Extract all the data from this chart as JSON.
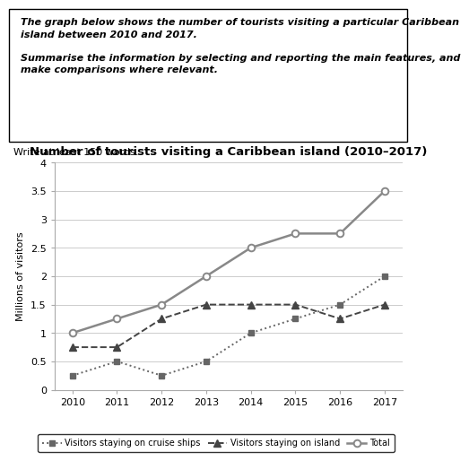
{
  "title": "Number of tourists visiting a Caribbean island (2010–2017)",
  "ylabel": "Millions of visitors",
  "years": [
    2010,
    2011,
    2012,
    2013,
    2014,
    2015,
    2016,
    2017
  ],
  "cruise_ships": [
    0.25,
    0.5,
    0.25,
    0.5,
    1.0,
    1.25,
    1.5,
    2.0
  ],
  "on_island": [
    0.75,
    0.75,
    1.25,
    1.5,
    1.5,
    1.5,
    1.25,
    1.5
  ],
  "total": [
    1.0,
    1.25,
    1.5,
    2.0,
    2.5,
    2.75,
    2.75,
    3.5
  ],
  "ylim": [
    0,
    4
  ],
  "yticks": [
    0,
    0.5,
    1.0,
    1.5,
    2.0,
    2.5,
    3.0,
    3.5,
    4.0
  ],
  "ytick_labels": [
    "0",
    "0.5",
    "1",
    "1.5",
    "2",
    "2.5",
    "3",
    "3.5",
    "4"
  ],
  "color_cruise": "#666666",
  "color_island": "#444444",
  "color_total": "#888888",
  "text_box_content": "The graph below shows the number of tourists visiting a particular Caribbean\nisland between 2010 and 2017.\n\nSummarise the information by selecting and reporting the main features, and\nmake comparisons where relevant.",
  "write_text": "Write at least 150 words.",
  "legend_cruise": "Visitors staying on cruise ships",
  "legend_island": "Visitors staying on island",
  "legend_total": "Total",
  "title_fontsize": 9.5,
  "axis_label_fontsize": 8,
  "tick_fontsize": 8,
  "write_fontsize": 8,
  "textbox_fontsize": 8
}
